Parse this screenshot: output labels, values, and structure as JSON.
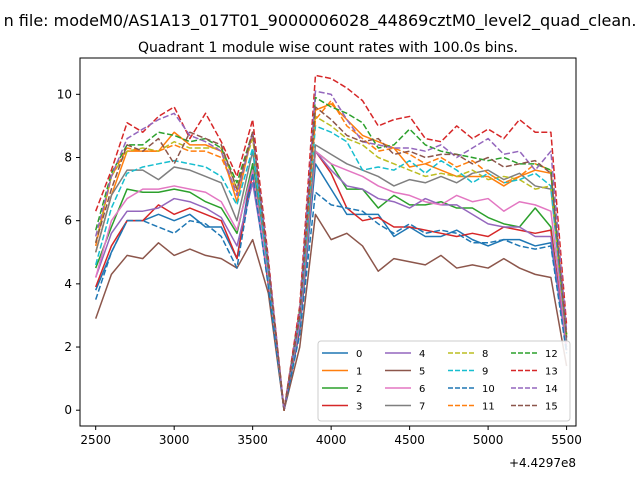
{
  "figure": {
    "suptitle": "n file: modeM0/AS1A13_017T01_9000006028_44869cztM0_level2_quad_clean.",
    "title": "Quadrant 1 module wise count rates with 100.0s bins.",
    "offset_text": "+4.4297e8"
  },
  "chart_data": {
    "type": "line",
    "title": "Quadrant 1 module wise count rates with 100.0s bins.",
    "xlabel": "",
    "ylabel": "",
    "x_offset": 442970000,
    "xlim": [
      2400,
      5560
    ],
    "ylim": [
      -0.5,
      11.15
    ],
    "xticks": [
      2500,
      3000,
      3500,
      4000,
      4500,
      5000,
      5500
    ],
    "yticks": [
      0,
      2,
      4,
      6,
      8,
      10
    ],
    "x": [
      2500,
      2600,
      2700,
      2800,
      2900,
      3000,
      3100,
      3200,
      3300,
      3400,
      3500,
      3600,
      3700,
      3800,
      3900,
      4000,
      4100,
      4200,
      4300,
      4400,
      4500,
      4600,
      4700,
      4800,
      4900,
      5000,
      5100,
      5200,
      5300,
      5400,
      5500
    ],
    "legend": {
      "position": "lower-right",
      "ncol": 4
    },
    "grid": false,
    "series": [
      {
        "name": "0",
        "color": "#1f77b4",
        "dash": false,
        "values": [
          3.8,
          5.0,
          6.0,
          6.0,
          6.2,
          6.0,
          6.2,
          5.8,
          5.8,
          4.8,
          7.8,
          4.0,
          0.0,
          2.5,
          7.8,
          7.0,
          6.2,
          6.2,
          6.2,
          5.5,
          5.8,
          5.5,
          5.5,
          5.7,
          5.4,
          5.2,
          5.4,
          5.4,
          5.2,
          5.3,
          2.0
        ]
      },
      {
        "name": "1",
        "color": "#ff7f0e",
        "dash": false,
        "values": [
          5.0,
          6.8,
          8.2,
          8.2,
          8.2,
          8.8,
          8.4,
          8.4,
          8.2,
          6.6,
          8.8,
          4.5,
          0.0,
          3.0,
          9.5,
          9.7,
          9.2,
          8.7,
          8.5,
          8.3,
          7.7,
          7.8,
          7.6,
          7.4,
          7.4,
          7.4,
          7.1,
          7.4,
          7.6,
          7.5,
          2.1
        ]
      },
      {
        "name": "2",
        "color": "#2ca02c",
        "dash": false,
        "values": [
          4.5,
          5.8,
          7.0,
          6.9,
          6.9,
          7.0,
          6.9,
          6.6,
          6.4,
          5.6,
          7.8,
          4.2,
          0.0,
          2.8,
          8.2,
          7.8,
          7.0,
          7.0,
          6.4,
          6.8,
          6.5,
          6.5,
          6.6,
          6.4,
          6.4,
          6.1,
          5.9,
          5.8,
          6.4,
          5.8,
          1.9
        ]
      },
      {
        "name": "3",
        "color": "#d62728",
        "dash": false,
        "values": [
          3.9,
          5.2,
          6.0,
          6.0,
          6.5,
          6.2,
          6.4,
          6.2,
          6.0,
          4.8,
          7.5,
          4.0,
          0.0,
          2.6,
          8.2,
          7.5,
          6.4,
          6.0,
          6.1,
          5.8,
          5.8,
          5.7,
          5.6,
          5.5,
          5.6,
          5.5,
          5.8,
          5.7,
          5.6,
          5.7,
          1.9
        ]
      },
      {
        "name": "4",
        "color": "#9467bd",
        "dash": false,
        "values": [
          4.2,
          5.6,
          6.3,
          6.3,
          6.4,
          6.7,
          6.6,
          6.4,
          6.1,
          5.2,
          7.2,
          4.2,
          0.0,
          2.7,
          8.2,
          7.6,
          7.1,
          7.0,
          6.7,
          6.6,
          6.4,
          6.7,
          6.5,
          6.5,
          6.2,
          5.9,
          5.8,
          5.8,
          5.5,
          5.5,
          1.9
        ]
      },
      {
        "name": "5",
        "color": "#8c564b",
        "dash": false,
        "values": [
          2.9,
          4.3,
          4.9,
          4.8,
          5.3,
          4.9,
          5.1,
          4.9,
          4.8,
          4.5,
          5.4,
          3.7,
          0.0,
          2.0,
          6.2,
          5.4,
          5.6,
          5.2,
          4.4,
          4.8,
          4.7,
          4.6,
          4.9,
          4.5,
          4.6,
          4.5,
          4.8,
          4.5,
          4.3,
          4.2,
          1.4
        ]
      },
      {
        "name": "6",
        "color": "#e377c2",
        "dash": false,
        "values": [
          4.2,
          6.0,
          6.7,
          7.0,
          7.0,
          7.1,
          7.0,
          6.9,
          6.6,
          5.7,
          7.6,
          4.2,
          0.0,
          2.8,
          8.2,
          7.8,
          7.6,
          7.4,
          7.1,
          6.9,
          6.8,
          6.6,
          6.5,
          6.8,
          6.6,
          6.7,
          6.3,
          6.6,
          6.5,
          6.3,
          2.1
        ]
      },
      {
        "name": "7",
        "color": "#7f7f7f",
        "dash": false,
        "values": [
          5.0,
          6.8,
          7.6,
          7.6,
          7.3,
          7.7,
          7.6,
          7.4,
          7.2,
          6.0,
          8.2,
          4.4,
          0.0,
          2.9,
          8.4,
          8.1,
          7.8,
          7.6,
          7.4,
          7.1,
          7.3,
          7.2,
          7.4,
          7.2,
          7.5,
          7.6,
          7.3,
          7.5,
          7.1,
          7.0,
          2.2
        ]
      },
      {
        "name": "8",
        "color": "#bcbd22",
        "dash": true,
        "values": [
          5.3,
          7.4,
          8.2,
          8.3,
          8.2,
          8.5,
          8.3,
          8.3,
          8.3,
          7.0,
          8.6,
          4.6,
          0.0,
          3.1,
          9.3,
          9.0,
          8.6,
          8.4,
          8.0,
          7.8,
          7.6,
          7.4,
          7.5,
          7.4,
          7.6,
          7.3,
          7.4,
          7.3,
          7.0,
          7.1,
          2.3
        ]
      },
      {
        "name": "9",
        "color": "#17becf",
        "dash": true,
        "values": [
          4.6,
          6.4,
          7.5,
          7.7,
          7.8,
          7.9,
          7.8,
          7.7,
          7.4,
          6.5,
          8.3,
          4.4,
          0.0,
          2.9,
          9.0,
          8.8,
          8.5,
          7.6,
          7.7,
          7.6,
          7.9,
          7.5,
          7.9,
          7.6,
          7.2,
          7.5,
          7.2,
          7.3,
          7.5,
          7.1,
          2.3
        ]
      },
      {
        "name": "10",
        "color": "#1f77b4",
        "dash": true,
        "values": [
          3.5,
          5.0,
          6.0,
          6.0,
          5.8,
          5.6,
          6.0,
          5.9,
          5.5,
          4.5,
          7.5,
          3.9,
          0.0,
          2.4,
          6.9,
          6.5,
          6.4,
          6.3,
          5.9,
          5.6,
          5.9,
          5.6,
          5.7,
          5.6,
          5.3,
          5.3,
          5.4,
          5.2,
          5.1,
          5.2,
          1.8
        ]
      },
      {
        "name": "11",
        "color": "#ff7f0e",
        "dash": true,
        "values": [
          5.2,
          7.4,
          8.3,
          8.2,
          8.2,
          8.4,
          8.2,
          8.2,
          8.0,
          6.9,
          8.8,
          4.6,
          0.0,
          3.1,
          9.2,
          9.8,
          9.0,
          8.6,
          8.2,
          8.3,
          8.1,
          7.8,
          8.0,
          7.7,
          7.9,
          7.5,
          7.2,
          7.4,
          7.8,
          7.6,
          2.4
        ]
      },
      {
        "name": "12",
        "color": "#2ca02c",
        "dash": true,
        "values": [
          5.7,
          7.5,
          8.4,
          8.4,
          8.8,
          8.7,
          8.5,
          8.6,
          8.3,
          7.2,
          8.8,
          4.6,
          0.0,
          3.2,
          9.9,
          9.6,
          9.4,
          9.1,
          8.3,
          8.4,
          8.9,
          8.4,
          8.2,
          8.1,
          8.0,
          7.9,
          8.0,
          7.8,
          7.8,
          7.6,
          2.4
        ]
      },
      {
        "name": "13",
        "color": "#d62728",
        "dash": true,
        "values": [
          6.3,
          7.6,
          9.1,
          8.8,
          9.3,
          9.6,
          8.6,
          9.4,
          8.5,
          7.4,
          9.2,
          4.8,
          0.0,
          3.3,
          10.6,
          10.5,
          10.2,
          9.8,
          9.0,
          9.2,
          9.3,
          8.6,
          8.5,
          9.0,
          8.6,
          8.9,
          8.6,
          9.2,
          8.8,
          8.8,
          2.7
        ]
      },
      {
        "name": "14",
        "color": "#9467bd",
        "dash": true,
        "values": [
          5.5,
          7.4,
          8.6,
          8.9,
          9.2,
          9.4,
          8.7,
          8.5,
          8.2,
          6.8,
          8.8,
          4.7,
          0.0,
          3.1,
          10.1,
          10.0,
          9.2,
          8.5,
          8.4,
          8.3,
          8.3,
          8.2,
          8.4,
          8.0,
          8.3,
          8.6,
          8.1,
          8.2,
          7.6,
          8.2,
          2.5
        ]
      },
      {
        "name": "15",
        "color": "#8c564b",
        "dash": true,
        "values": [
          5.3,
          7.0,
          8.4,
          8.2,
          8.6,
          7.8,
          8.8,
          8.6,
          8.4,
          7.0,
          8.8,
          4.6,
          0.0,
          3.0,
          9.6,
          9.2,
          8.7,
          8.5,
          8.6,
          8.1,
          8.2,
          8.0,
          8.1,
          8.1,
          7.8,
          8.0,
          7.7,
          7.8,
          7.9,
          7.5,
          2.3
        ]
      }
    ]
  }
}
